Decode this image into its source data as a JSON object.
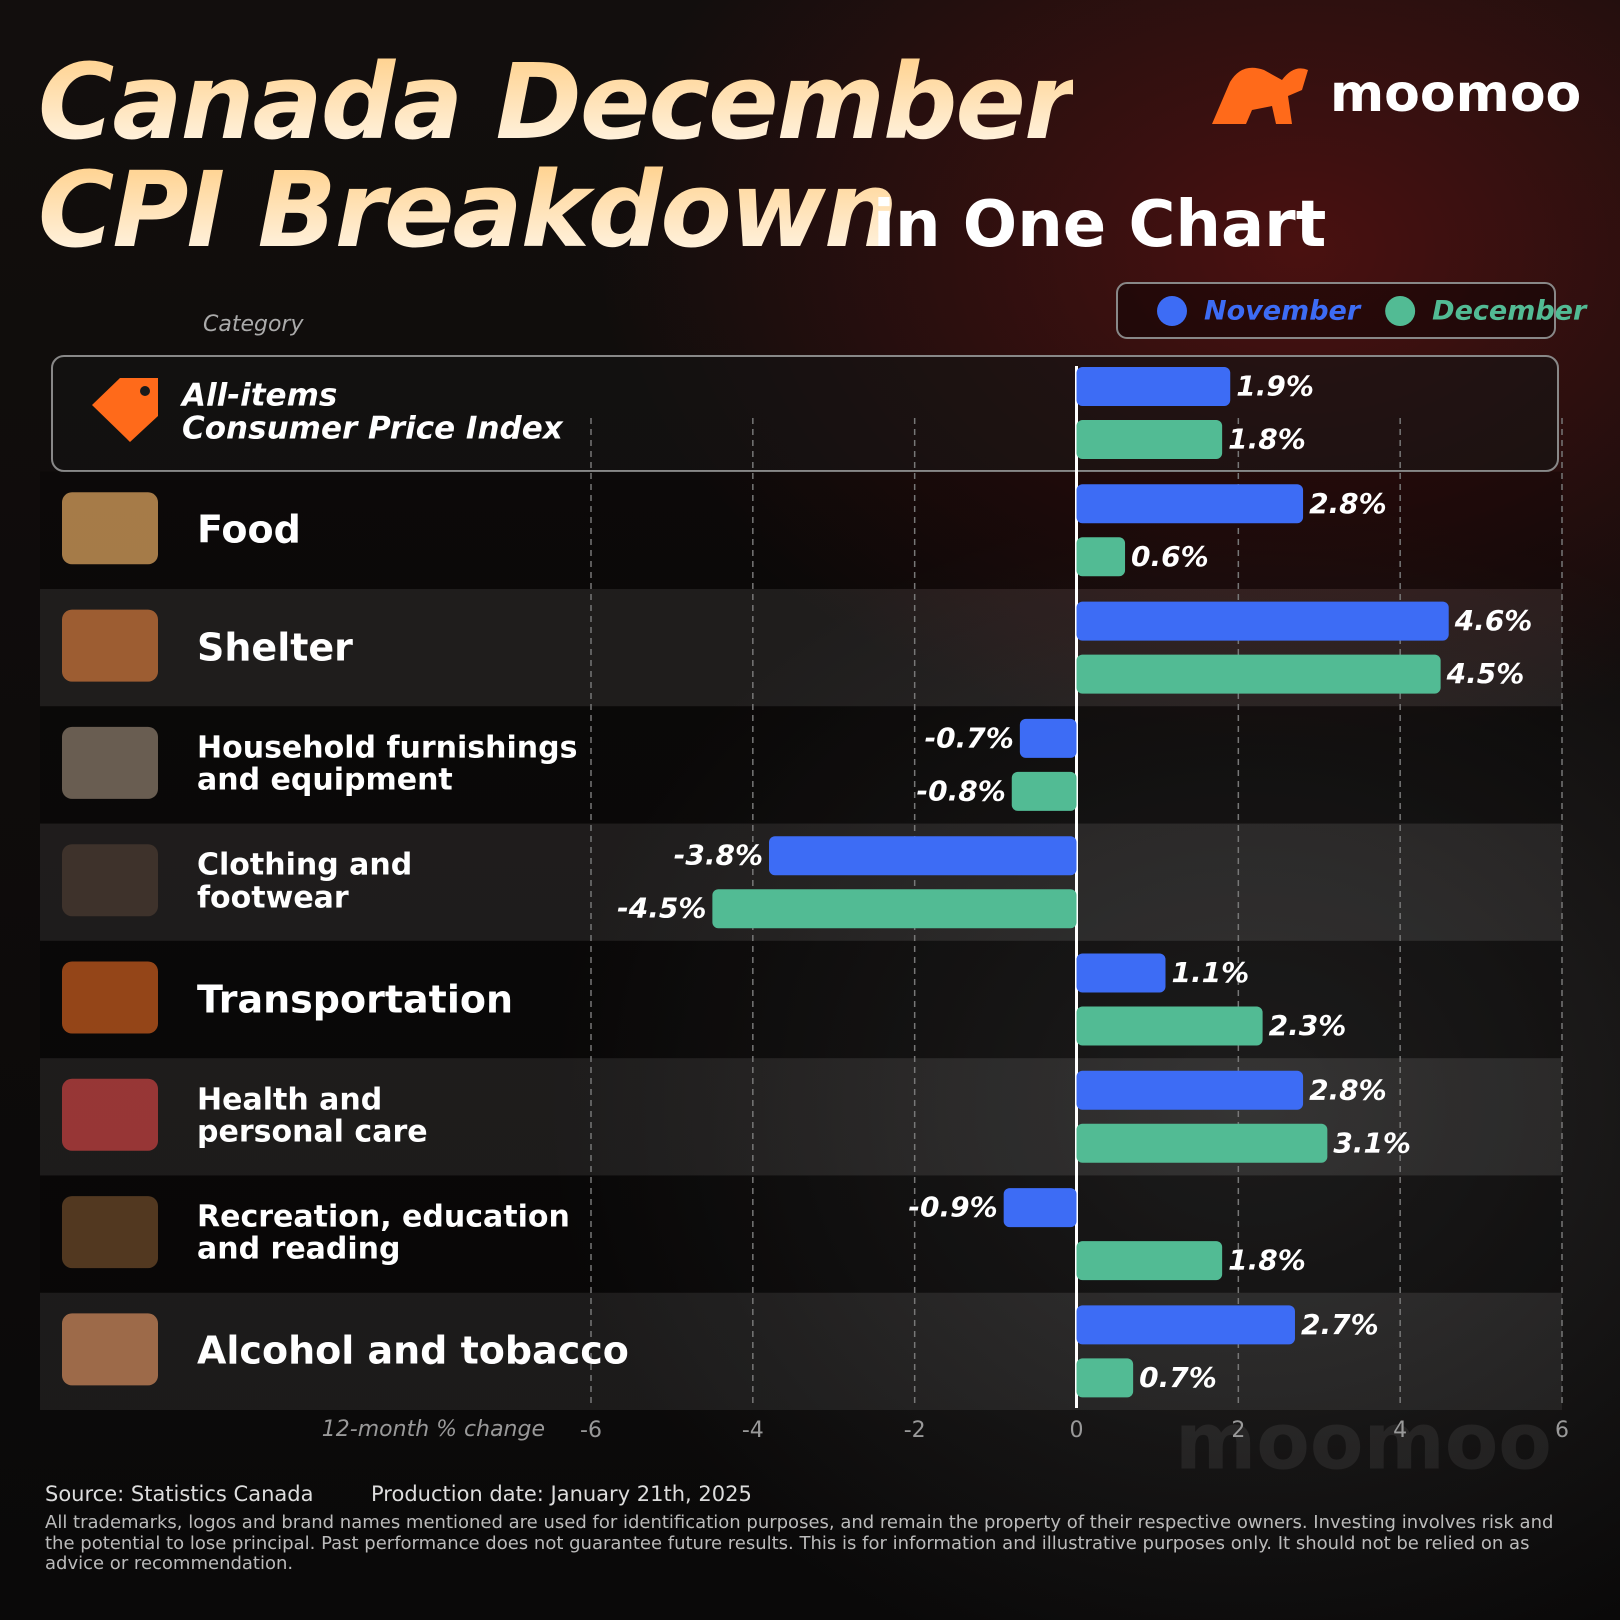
{
  "chart_data": {
    "type": "bar",
    "orientation": "horizontal",
    "title_lines": [
      "Canada December",
      "CPI Breakdown"
    ],
    "subtitle": "in One Chart",
    "brand": "moomoo",
    "category_axis_label": "Category",
    "x_axis_label": "12-month % change",
    "categories": [
      "All-items\nConsumer Price Index",
      "Food",
      "Shelter",
      "Household furnishings\nand equipment",
      "Clothing and\nfootwear",
      "Transportation",
      "Health and\npersonal care",
      "Recreation, education\nand reading",
      "Alcohol and tobacco"
    ],
    "series": [
      {
        "name": "November",
        "color": "#3d6cf5",
        "values": [
          1.9,
          2.8,
          4.6,
          -0.7,
          -3.8,
          1.1,
          2.8,
          -0.9,
          2.7
        ],
        "value_labels": [
          "1.9%",
          "2.8%",
          "4.6%",
          "-0.7%",
          "-3.8%",
          "1.1%",
          "2.8%",
          "-0.9%",
          "2.7%"
        ]
      },
      {
        "name": "December",
        "color": "#52bb94",
        "values": [
          1.8,
          0.6,
          4.5,
          -0.8,
          -4.5,
          2.3,
          3.1,
          1.8,
          0.7
        ],
        "value_labels": [
          "1.8%",
          "0.6%",
          "4.5%",
          "-0.8%",
          "-4.5%",
          "2.3%",
          "3.1%",
          "1.8%",
          "0.7%"
        ]
      }
    ],
    "xlim": [
      -6,
      6
    ],
    "xticks": [
      -6,
      -4,
      -2,
      0,
      2,
      4,
      6
    ],
    "grid": true,
    "legend": "top-right",
    "source": "Source: Statistics Canada",
    "production_date": "Production date: January 21th, 2025",
    "disclaimer": "All trademarks, logos and brand names mentioned are used for identification purposes, and remain the property of their respective owners. Investing involves risk and the potential to lose principal. Past performance does not guarantee future results. This is for information and illustrative purposes only. It should not be relied on as advice or recommendation."
  }
}
